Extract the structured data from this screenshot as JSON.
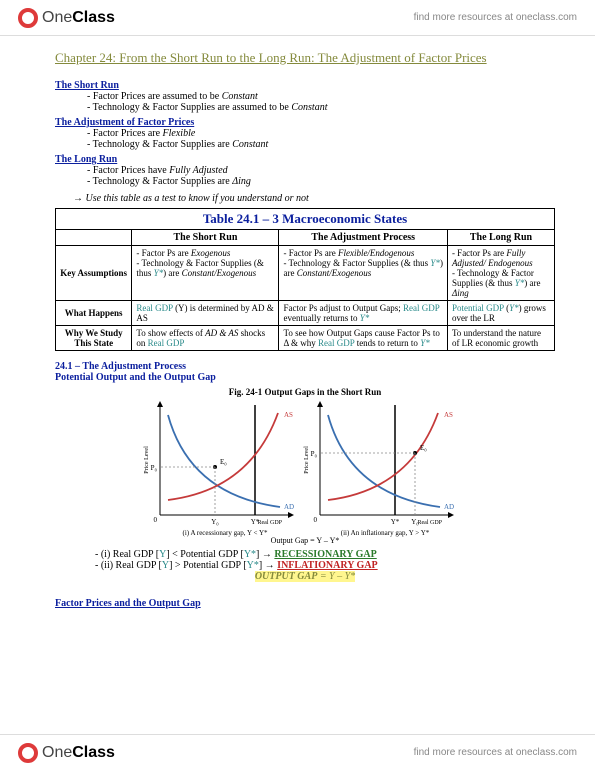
{
  "brand": {
    "name_light": "One",
    "name_bold": "Class",
    "tagline": "find more resources at oneclass.com"
  },
  "chapter_title": "Chapter 24: From the Short Run to the Long Run: The Adjustment of Factor Prices",
  "sections": {
    "short_run": {
      "title": "The Short Run",
      "b1_a": "Factor Prices are assumed to be ",
      "b1_b": "Constant",
      "b2_a": "Technology & Factor Supplies are assumed to be ",
      "b2_b": "Constant"
    },
    "adjust": {
      "title": "The Adjustment of Factor Prices",
      "b1_a": "Factor Prices are ",
      "b1_b": "Flexible",
      "b2_a": "Technology & Factor Supplies are ",
      "b2_b": "Constant"
    },
    "long_run": {
      "title": "The Long Run",
      "b1_a": "Factor Prices have ",
      "b1_b": "Fully Adjusted",
      "b2_a": "Technology & Factor Supplies are ",
      "b2_b": "Δing"
    }
  },
  "arrow_note": "→  Use this table as a test to know if you understand or not",
  "table": {
    "title": "Table 24.1 – 3 Macroeconomic States",
    "col1": "The Short Run",
    "col2": "The Adjustment Process",
    "col3": "The Long Run",
    "row1h": "Key Assumptions",
    "row2h": "What Happens",
    "row3h": "Why We Study This State",
    "r1c1_a": "- Factor Ps are ",
    "r1c1_b": "Exogenous",
    "r1c1_c": "- Technology & Factor Supplies (& thus ",
    "r1c1_y": "Y*",
    "r1c1_d": ") are ",
    "r1c1_e": "Constant/Exogenous",
    "r1c2_a": "- Factor Ps are ",
    "r1c2_b": "Flexible/Endogenous",
    "r1c2_c": "- Technology & Factor Supplies (& thus ",
    "r1c2_y": "Y*",
    "r1c2_d": ") are ",
    "r1c2_e": "Constant/Exogenous",
    "r1c3_a": "- Factor Ps are ",
    "r1c3_b": "Fully Adjusted/ Endogenous",
    "r1c3_c": "- Technology & Factor Supplies (& thus ",
    "r1c3_y": "Y*",
    "r1c3_d": ") are ",
    "r1c3_e": "Δing",
    "r2c1_a": "Real GDP",
    "r2c1_b": " (Y) is determined by AD & AS",
    "r2c2_a": "Factor Ps adjust to Output Gaps; ",
    "r2c2_b": "Real GDP",
    "r2c2_c": " eventually returns to ",
    "r2c2_y": "Y*",
    "r2c3_a": "Potential GDP",
    "r2c3_b": " (",
    "r2c3_y": "Y*",
    "r2c3_c": ") grows over the LR",
    "r3c1_a": "To show effects of ",
    "r3c1_b": "AD & AS",
    "r3c1_c": " shocks on ",
    "r3c1_d": "Real GDP",
    "r3c2_a": "To see how Output Gaps cause Factor Ps to Δ & why ",
    "r3c2_b": "Real GDP",
    "r3c2_c": " tends to return to ",
    "r3c2_y": "Y*",
    "r3c3": "To understand the nature of LR economic growth"
  },
  "h241": "24.1 – The Adjustment Process",
  "h241_sub": "Potential Output and the Output Gap",
  "fig": {
    "title": "Fig. 24-1   Output Gaps in the Short Run",
    "caption": "Output Gap = Y – Y*",
    "left_label": "(i) A recessionary gap, Y < Y*",
    "right_label": "(ii) An inflationary gap, Y > Y*",
    "y_axis": "Price Level",
    "x_axis": "Real GDP",
    "as": "AS",
    "ad": "AD",
    "p0": "P₀",
    "y0": "Y₀",
    "ystar": "Y*",
    "e0": "E₀",
    "colors": {
      "as": "#c53a3a",
      "ad": "#3a6fb0",
      "ystar_line": "#000",
      "axis": "#000",
      "dash": "#888",
      "text": "#000"
    }
  },
  "gaps": {
    "line1_a": "(i) Real GDP [",
    "line1_y": "Y",
    "line1_b": "] < Potential GDP [",
    "line1_ys": "Y*",
    "line1_c": "] → ",
    "line1_d": "RECESSIONARY GAP",
    "line2_a": "(ii) Real GDP [",
    "line2_y": "Y",
    "line2_b": "] > Potential GDP [",
    "line2_ys": "Y*",
    "line2_c": "] → ",
    "line2_d": "INFLATIONARY GAP",
    "out_a": "OUTPUT GAP",
    "out_b": " = Y – Y*"
  },
  "factor_heading": "Factor Prices and the Output Gap"
}
